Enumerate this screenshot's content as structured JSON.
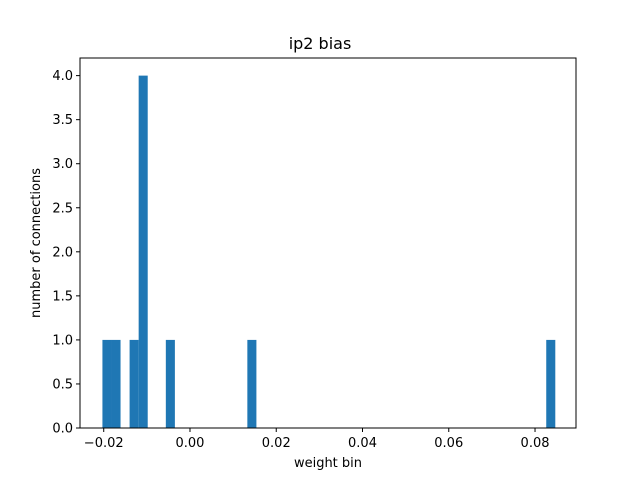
{
  "chart_data": {
    "type": "bar",
    "title": "ip2 bias",
    "xlabel": "weight bin",
    "ylabel": "number of connections",
    "xlim": [
      -0.0255,
      0.0895
    ],
    "ylim": [
      0.0,
      4.2
    ],
    "grid": false,
    "bar_color": "#1f77b4",
    "bin_width": 0.0021,
    "bins": [
      {
        "x_start": -0.0203,
        "value": 1
      },
      {
        "x_start": -0.0182,
        "value": 1
      },
      {
        "x_start": -0.014,
        "value": 1
      },
      {
        "x_start": -0.0119,
        "value": 4
      },
      {
        "x_start": -0.0056,
        "value": 1
      },
      {
        "x_start": 0.0133,
        "value": 1
      },
      {
        "x_start": 0.0826,
        "value": 1
      }
    ],
    "xticks": [
      {
        "value": -0.02,
        "label": "−0.02"
      },
      {
        "value": 0.0,
        "label": "0.00"
      },
      {
        "value": 0.02,
        "label": "0.02"
      },
      {
        "value": 0.04,
        "label": "0.04"
      },
      {
        "value": 0.06,
        "label": "0.06"
      },
      {
        "value": 0.08,
        "label": "0.08"
      }
    ],
    "yticks": [
      {
        "value": 0.0,
        "label": "0.0"
      },
      {
        "value": 0.5,
        "label": "0.5"
      },
      {
        "value": 1.0,
        "label": "1.0"
      },
      {
        "value": 1.5,
        "label": "1.5"
      },
      {
        "value": 2.0,
        "label": "2.0"
      },
      {
        "value": 2.5,
        "label": "2.5"
      },
      {
        "value": 3.0,
        "label": "3.0"
      },
      {
        "value": 3.5,
        "label": "3.5"
      },
      {
        "value": 4.0,
        "label": "4.0"
      }
    ]
  }
}
